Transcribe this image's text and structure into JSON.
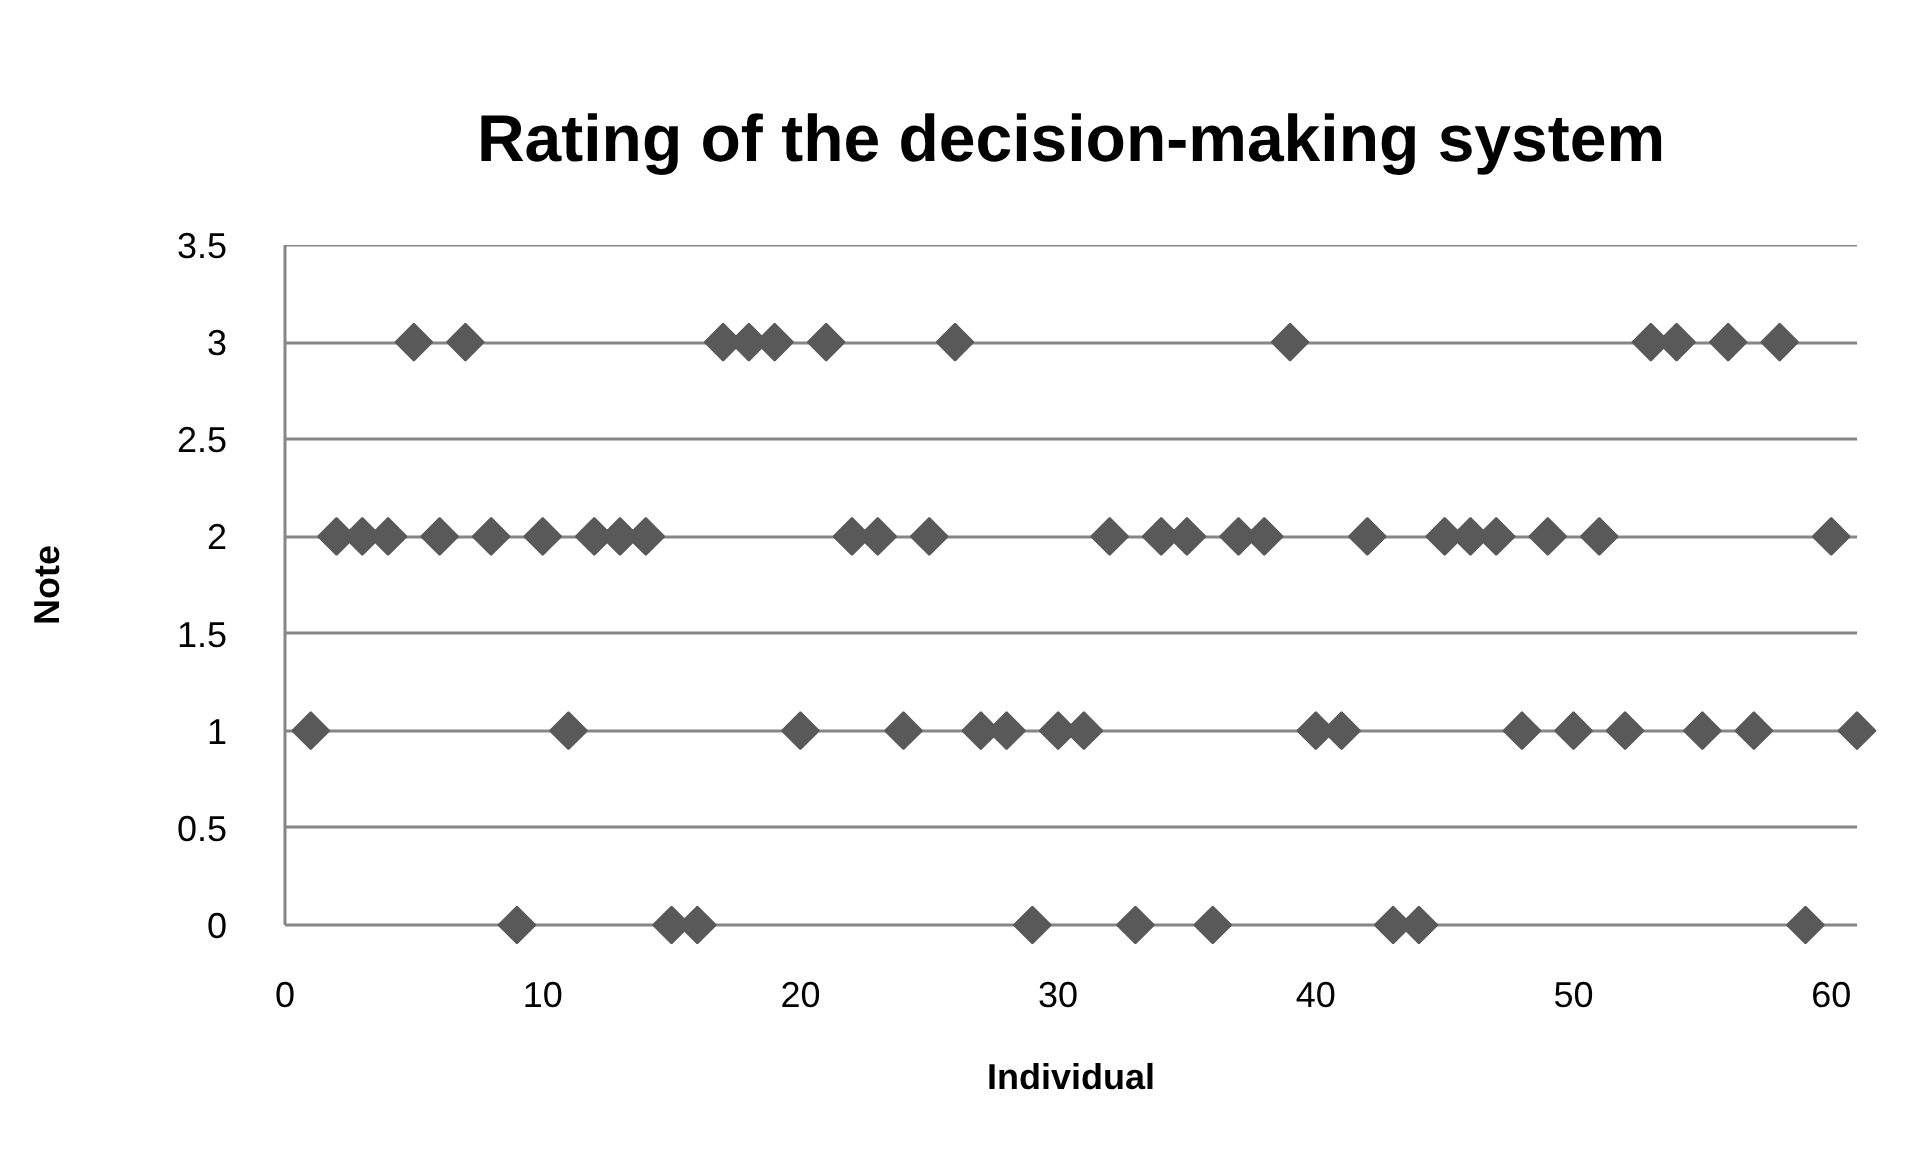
{
  "chart_data": {
    "type": "scatter",
    "title": "Rating of the decision-making system",
    "xlabel": "Individual",
    "ylabel": "Note",
    "x": [
      1,
      2,
      3,
      4,
      5,
      6,
      7,
      8,
      9,
      10,
      11,
      12,
      13,
      14,
      15,
      16,
      17,
      18,
      19,
      20,
      21,
      22,
      23,
      24,
      25,
      26,
      27,
      28,
      29,
      30,
      31,
      32,
      33,
      34,
      35,
      36,
      37,
      38,
      39,
      40,
      41,
      42,
      43,
      44,
      45,
      46,
      47,
      48,
      49,
      50,
      51,
      52,
      53,
      54,
      55,
      56,
      57,
      58,
      59,
      60,
      61
    ],
    "values": [
      1,
      2,
      2,
      2,
      3,
      2,
      3,
      2,
      0,
      2,
      1,
      2,
      2,
      2,
      0,
      0,
      3,
      3,
      3,
      1,
      3,
      2,
      2,
      1,
      2,
      3,
      1,
      1,
      0,
      1,
      1,
      2,
      0,
      2,
      2,
      0,
      2,
      2,
      3,
      1,
      1,
      2,
      0,
      0,
      2,
      2,
      2,
      1,
      2,
      1,
      2,
      1,
      3,
      3,
      1,
      3,
      1,
      3,
      0,
      2,
      1
    ],
    "color": "#595959",
    "marker": "diamond",
    "xlim": [
      0,
      61
    ],
    "xticks": [
      0,
      10,
      20,
      30,
      40,
      50,
      60
    ],
    "ylim": [
      0,
      3.5
    ],
    "yticks": [
      0,
      0.5,
      1,
      1.5,
      2,
      2.5,
      3,
      3.5
    ],
    "grid": "y"
  }
}
